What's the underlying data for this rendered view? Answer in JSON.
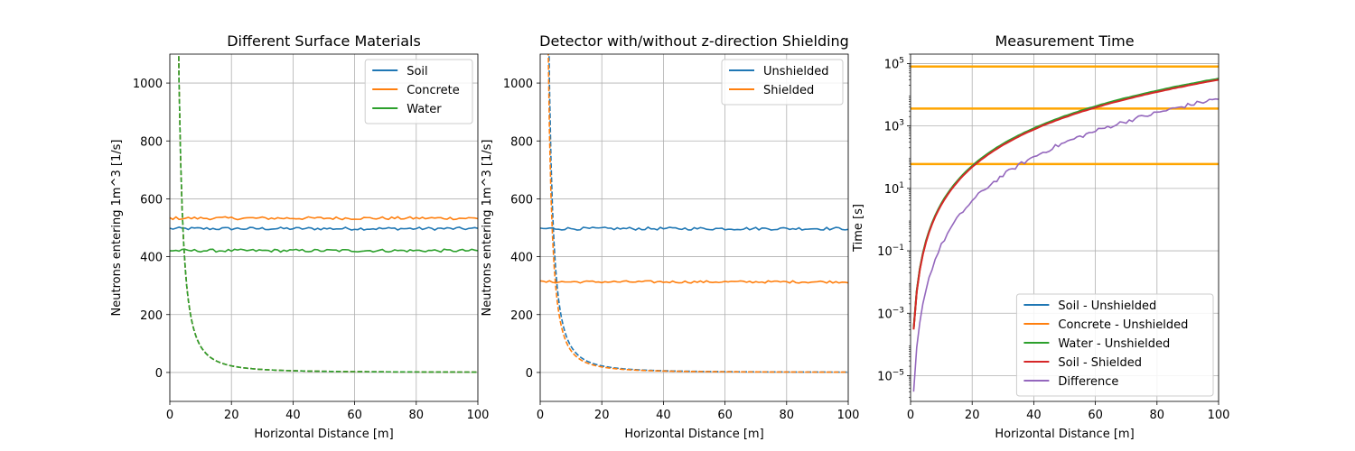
{
  "chart_data": [
    {
      "type": "line",
      "title": "Different Surface Materials",
      "xlabel": "Horizontal Distance [m]",
      "ylabel": "Neutrons entering 1m^3 [1/s]",
      "xlim": [
        0,
        100
      ],
      "ylim": [
        -100,
        1100
      ],
      "x_ticks": [
        0,
        20,
        40,
        60,
        80,
        100
      ],
      "y_ticks": [
        0,
        200,
        400,
        600,
        800,
        1000
      ],
      "grid": true,
      "legend_position": "top-right",
      "series": [
        {
          "name": "Soil",
          "color": "#1f77b4",
          "style": "solid",
          "kind": "flat",
          "level": 497,
          "noise": 5
        },
        {
          "name": "Concrete",
          "color": "#ff7f0e",
          "style": "solid",
          "kind": "flat",
          "level": 533,
          "noise": 5
        },
        {
          "name": "Water",
          "color": "#2ca02c",
          "style": "solid",
          "kind": "flat",
          "level": 421,
          "noise": 5
        },
        {
          "name": "",
          "color": "#1f77b4",
          "style": "dashed",
          "kind": "inverse_square",
          "scale": 9000
        },
        {
          "name": "",
          "color": "#ff7f0e",
          "style": "dashed",
          "kind": "inverse_square",
          "scale": 9000
        },
        {
          "name": "",
          "color": "#2ca02c",
          "style": "dashed",
          "kind": "inverse_square",
          "scale": 9000
        }
      ]
    },
    {
      "type": "line",
      "title": "Detector with/without z-direction Shielding",
      "xlabel": "Horizontal Distance [m]",
      "ylabel": "Neutrons entering 1m^3 [1/s]",
      "xlim": [
        0,
        100
      ],
      "ylim": [
        -100,
        1100
      ],
      "x_ticks": [
        0,
        20,
        40,
        60,
        80,
        100
      ],
      "y_ticks": [
        0,
        200,
        400,
        600,
        800,
        1000
      ],
      "grid": true,
      "legend_position": "top-right",
      "series": [
        {
          "name": "Unshielded",
          "color": "#1f77b4",
          "style": "solid",
          "kind": "flat",
          "level": 497,
          "noise": 5
        },
        {
          "name": "Shielded",
          "color": "#ff7f0e",
          "style": "solid",
          "kind": "flat",
          "level": 313,
          "noise": 4
        },
        {
          "name": "",
          "color": "#1f77b4",
          "style": "dashed",
          "kind": "inverse_square",
          "scale": 9000
        },
        {
          "name": "",
          "color": "#ff7f0e",
          "style": "dashed",
          "kind": "inverse_square",
          "scale": 7500
        }
      ]
    },
    {
      "type": "line",
      "title": "Measurement Time",
      "xlabel": "Horizontal Distance [m]",
      "ylabel": "Time [s]",
      "xlim": [
        0,
        100
      ],
      "ylim": [
        1.5e-06,
        200000.0
      ],
      "yscale": "log",
      "x_ticks": [
        0,
        20,
        40,
        60,
        80,
        100
      ],
      "y_tick_exponents": [
        -5,
        -3,
        -1,
        1,
        3,
        5
      ],
      "grid": true,
      "legend_position": "bottom-right",
      "series": [
        {
          "name": "Soil - Unshielded",
          "color": "#1f77b4",
          "style": "solid",
          "kind": "power",
          "coef": 0.00032,
          "exp": 4,
          "noise": 0.01
        },
        {
          "name": "Concrete - Unshielded",
          "color": "#ff7f0e",
          "style": "solid",
          "kind": "power",
          "coef": 0.00031,
          "exp": 4,
          "noise": 0.01
        },
        {
          "name": "Water - Unshielded",
          "color": "#2ca02c",
          "style": "solid",
          "kind": "power",
          "coef": 0.00033,
          "exp": 4,
          "noise": 0.01
        },
        {
          "name": "Soil - Shielded",
          "color": "#d62728",
          "style": "solid",
          "kind": "power",
          "coef": 0.0003,
          "exp": 4,
          "noise": 0.01
        },
        {
          "name": "Difference",
          "color": "#9467bd",
          "style": "solid",
          "kind": "power",
          "coef": 3e-06,
          "exp": 4.7,
          "noise": 0.15
        }
      ],
      "hlines": [
        {
          "value": 80000,
          "color": "#ffa500"
        },
        {
          "value": 3600,
          "color": "#ffa500"
        },
        {
          "value": 60,
          "color": "#ffa500"
        }
      ]
    }
  ]
}
